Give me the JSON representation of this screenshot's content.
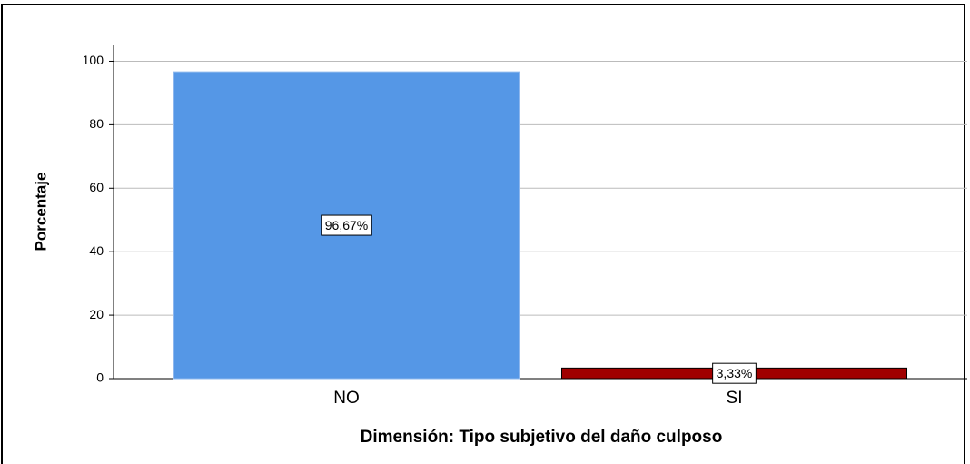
{
  "chart_data": {
    "type": "bar",
    "categories": [
      "NO",
      "SI"
    ],
    "values": [
      96.67,
      3.33
    ],
    "value_labels": [
      "96,67%",
      "3,33%"
    ],
    "colors": [
      "#5597e6",
      "#a00000"
    ],
    "ylabel": "Porcentaje",
    "xlabel": "Dimensión: Tipo subjetivo del daño culposo",
    "ylim": [
      0,
      105
    ],
    "yticks": [
      0,
      20,
      40,
      60,
      80,
      100
    ],
    "grid": true
  }
}
